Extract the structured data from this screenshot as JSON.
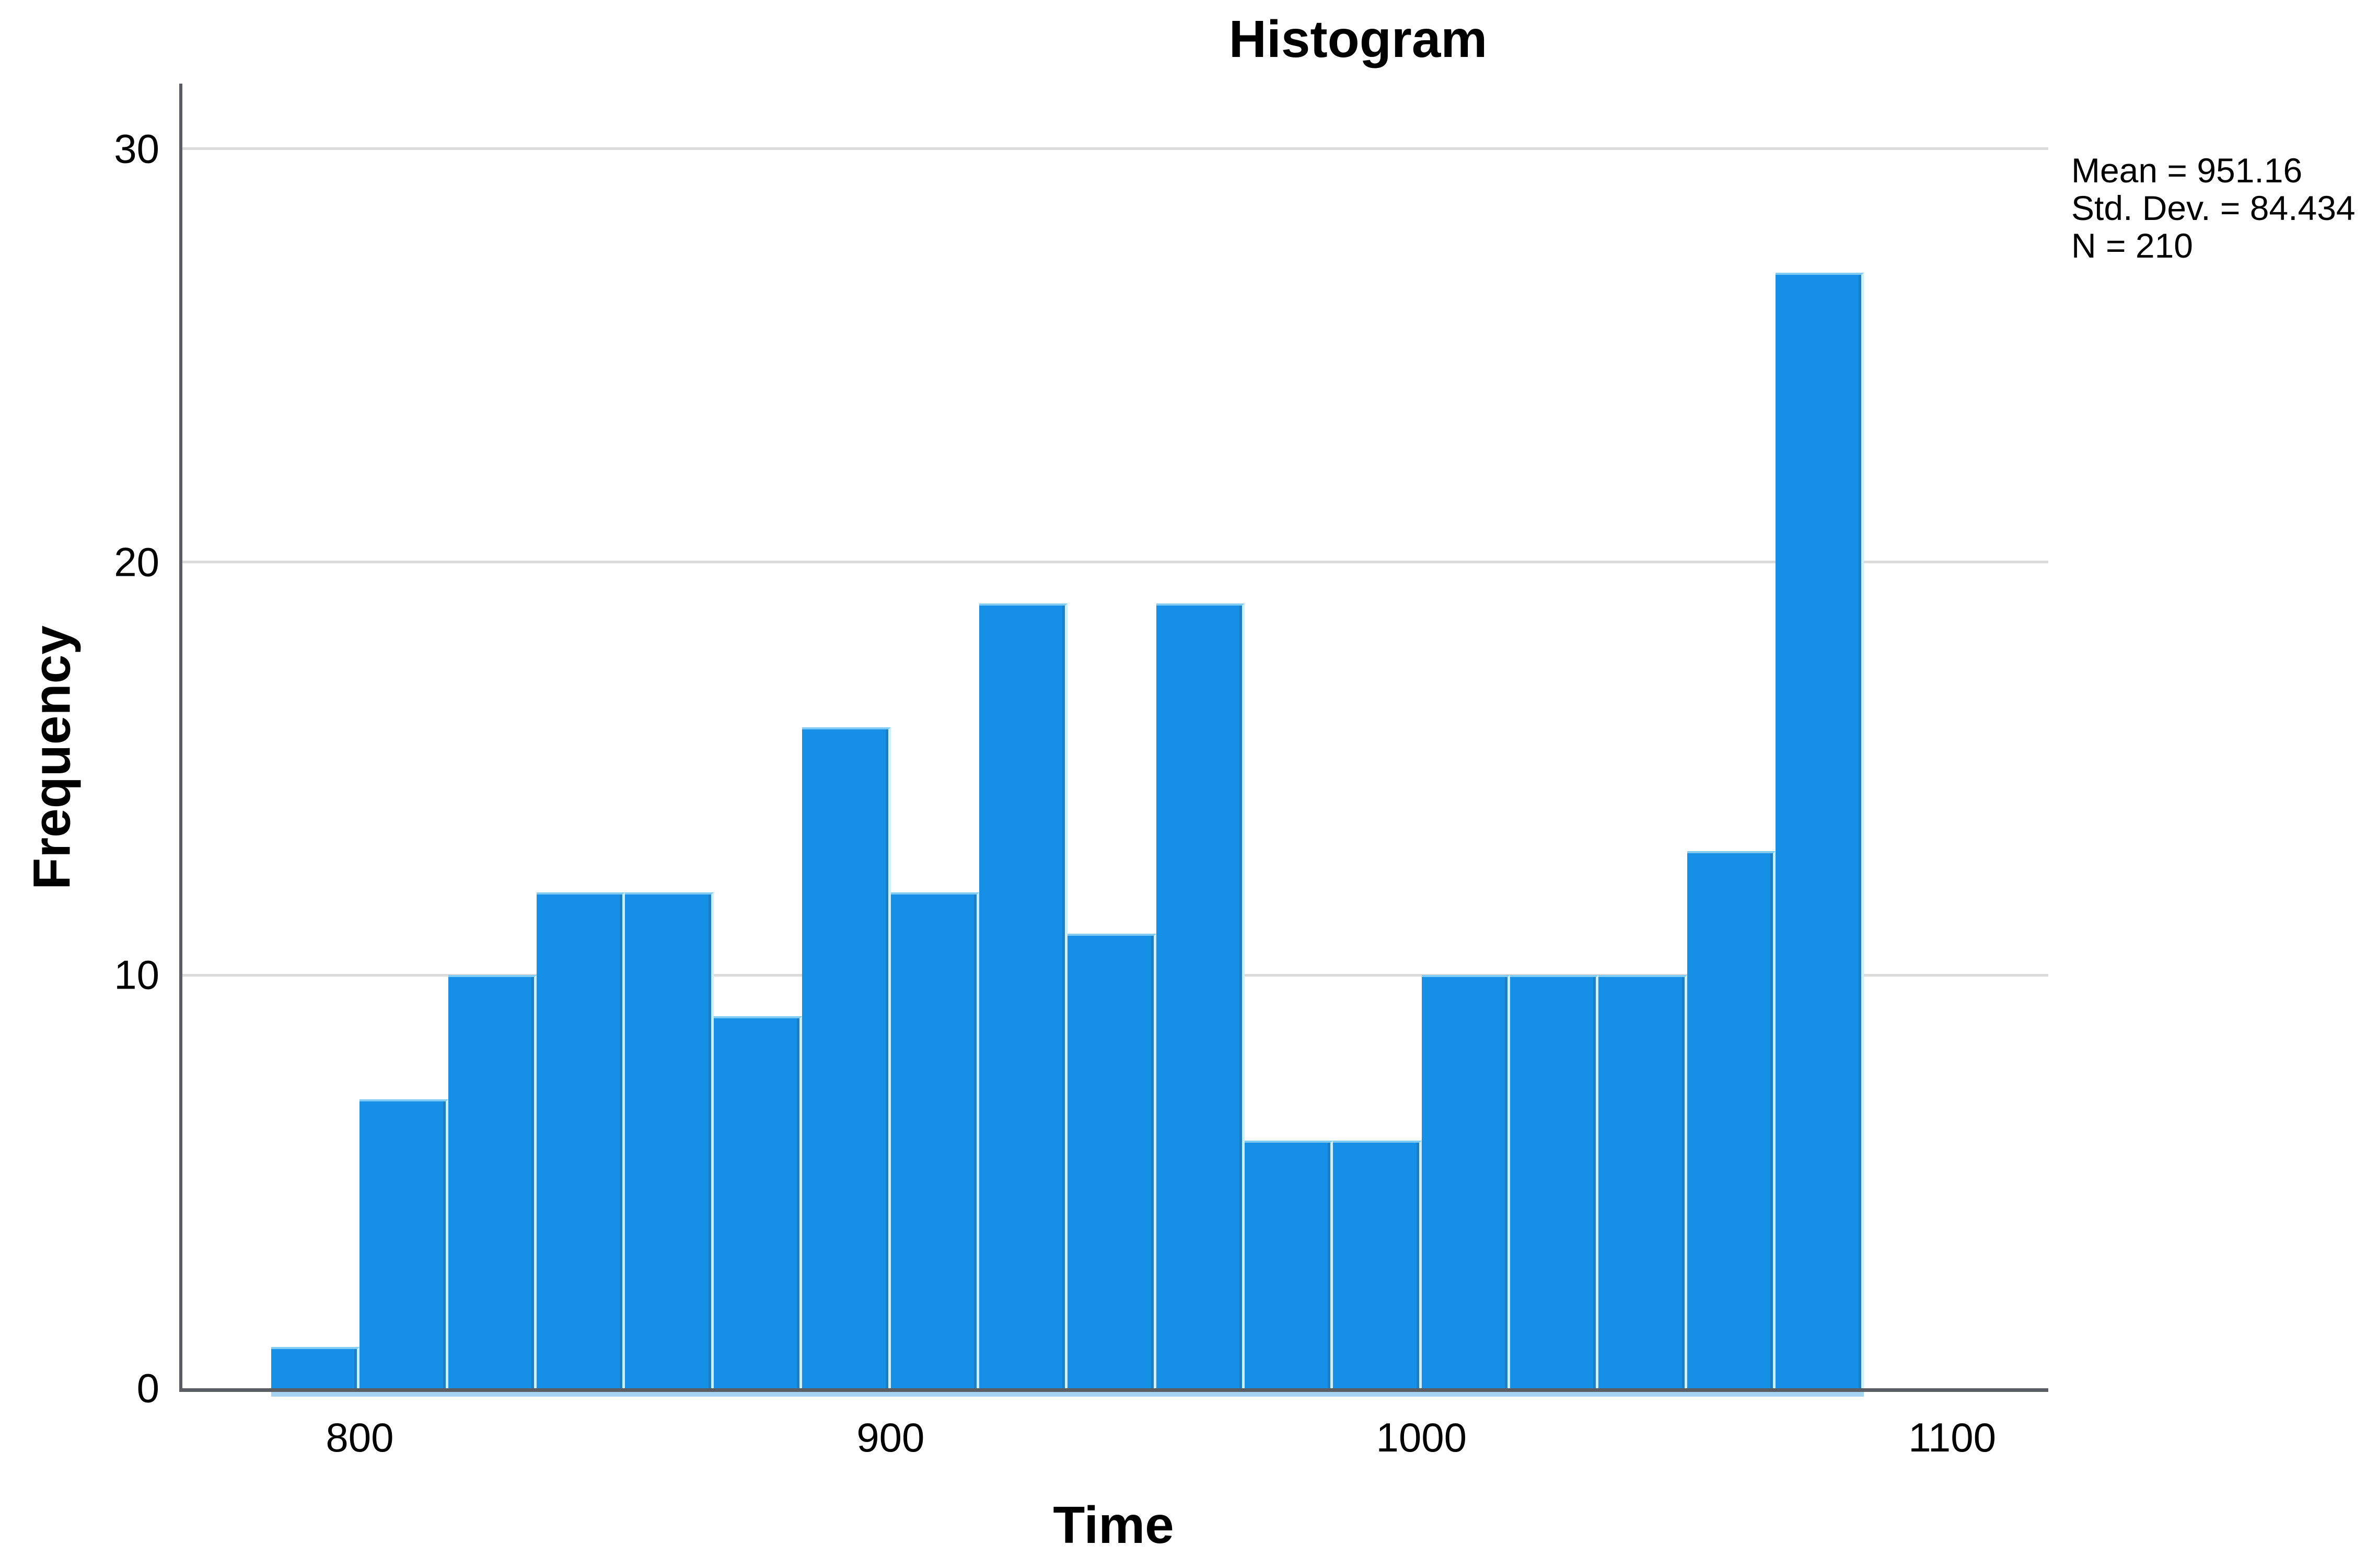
{
  "page": {
    "background_color": "#ffffff"
  },
  "chart_data": {
    "type": "bar",
    "subtype": "histogram",
    "title": "Histogram",
    "xlabel": "Time",
    "ylabel": "Frequency",
    "annotation": {
      "lines": [
        "Mean = 951.16",
        "Std. Dev. = 84.434",
        "N = 210"
      ],
      "position": "top-right-outside"
    },
    "bins": {
      "first_start": 783.33,
      "width": 16.67
    },
    "values": [
      1,
      7,
      10,
      12,
      12,
      9,
      16,
      12,
      19,
      11,
      19,
      6,
      6,
      10,
      10,
      10,
      13,
      27
    ],
    "n_total": 210,
    "x_ticks": [
      800,
      900,
      1000,
      1100
    ],
    "y_ticks": [
      0,
      10,
      20,
      30
    ],
    "xlim": [
      766,
      1118.1
    ],
    "ylim": [
      0,
      31.58
    ],
    "grid": "horizontal",
    "legend": "none",
    "colors": {
      "bar_fill": "#1590E6",
      "bar_top_edge": "#7FCBF3",
      "bar_separator": "#CBEFFE",
      "bar_right_shade": "rgba(47,98,140,0.40)",
      "under_axis_strip": "#A5D4F1",
      "gridline": "#DBDBDB",
      "axis_line": "#5A5E63",
      "text": "#000000"
    }
  }
}
